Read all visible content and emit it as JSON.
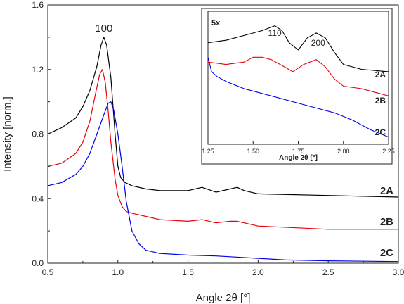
{
  "chart_data": [
    {
      "type": "line",
      "xlabel": "Angle 2θ [°]",
      "ylabel": "Intensity [norm.]",
      "xlim": [
        0.5,
        3.0
      ],
      "ylim": [
        0.0,
        1.6
      ],
      "xticks": [
        "0.5",
        "1.0",
        "1.5",
        "2.0",
        "2.5",
        "3.0"
      ],
      "yticks": [
        "0.0",
        "0.4",
        "0.8",
        "1.2",
        "1.6"
      ],
      "annotations": [
        "100"
      ],
      "grid": false,
      "series": [
        {
          "name": "2A",
          "color": "#000000",
          "x": [
            0.5,
            0.6,
            0.7,
            0.75,
            0.8,
            0.85,
            0.88,
            0.9,
            0.92,
            0.95,
            0.98,
            1.0,
            1.02,
            1.05,
            1.1,
            1.2,
            1.3,
            1.5,
            1.6,
            1.7,
            1.8,
            1.85,
            1.9,
            2.0,
            2.5,
            3.0
          ],
          "y": [
            0.8,
            0.84,
            0.9,
            0.97,
            1.07,
            1.22,
            1.35,
            1.4,
            1.35,
            1.15,
            0.8,
            0.6,
            0.53,
            0.5,
            0.48,
            0.46,
            0.45,
            0.45,
            0.47,
            0.44,
            0.46,
            0.47,
            0.45,
            0.43,
            0.42,
            0.41
          ]
        },
        {
          "name": "2B",
          "color": "#e8000b",
          "x": [
            0.5,
            0.6,
            0.7,
            0.75,
            0.8,
            0.84,
            0.87,
            0.89,
            0.91,
            0.93,
            0.95,
            0.98,
            1.0,
            1.03,
            1.06,
            1.1,
            1.2,
            1.3,
            1.5,
            1.6,
            1.7,
            1.8,
            1.85,
            1.9,
            2.0,
            2.5,
            3.0
          ],
          "y": [
            0.6,
            0.62,
            0.68,
            0.75,
            0.88,
            1.05,
            1.17,
            1.2,
            1.12,
            0.95,
            0.75,
            0.52,
            0.42,
            0.35,
            0.32,
            0.31,
            0.29,
            0.27,
            0.26,
            0.27,
            0.25,
            0.26,
            0.26,
            0.25,
            0.23,
            0.21,
            0.21
          ]
        },
        {
          "name": "2C",
          "color": "#0000ee",
          "x": [
            0.5,
            0.6,
            0.7,
            0.75,
            0.8,
            0.85,
            0.9,
            0.93,
            0.95,
            0.97,
            1.0,
            1.03,
            1.06,
            1.1,
            1.15,
            1.2,
            1.3,
            1.5,
            1.7,
            1.8,
            2.0,
            2.2,
            2.5,
            3.0
          ],
          "y": [
            0.48,
            0.5,
            0.55,
            0.6,
            0.68,
            0.8,
            0.92,
            0.99,
            1.0,
            0.95,
            0.8,
            0.6,
            0.38,
            0.2,
            0.12,
            0.08,
            0.06,
            0.05,
            0.045,
            0.04,
            0.03,
            0.02,
            0.015,
            0.01
          ]
        }
      ]
    },
    {
      "type": "line",
      "xlabel": "Angle 2θ [°]",
      "xlim": [
        1.25,
        2.25
      ],
      "xticks": [
        "1.25",
        "1.50",
        "1.75",
        "2.00",
        "2.25"
      ],
      "yticks": [],
      "annotations": [
        "5x",
        "110",
        "200"
      ],
      "grid": false,
      "series": [
        {
          "name": "2A",
          "color": "#000000",
          "x": [
            1.25,
            1.35,
            1.45,
            1.55,
            1.62,
            1.66,
            1.7,
            1.75,
            1.8,
            1.85,
            1.9,
            1.95,
            2.0,
            2.05,
            2.1,
            2.25
          ],
          "y": [
            0.82,
            0.83,
            0.85,
            0.87,
            0.89,
            0.87,
            0.82,
            0.79,
            0.84,
            0.86,
            0.84,
            0.78,
            0.73,
            0.72,
            0.71,
            0.7
          ]
        },
        {
          "name": "2B",
          "color": "#e8000b",
          "x": [
            1.25,
            1.35,
            1.45,
            1.5,
            1.55,
            1.6,
            1.65,
            1.72,
            1.78,
            1.85,
            1.9,
            1.95,
            2.0,
            2.1,
            2.25
          ],
          "y": [
            0.74,
            0.73,
            0.74,
            0.76,
            0.76,
            0.75,
            0.73,
            0.7,
            0.73,
            0.75,
            0.72,
            0.67,
            0.64,
            0.63,
            0.6
          ]
        },
        {
          "name": "2C",
          "color": "#0000ee",
          "x": [
            1.25,
            1.27,
            1.3,
            1.35,
            1.45,
            1.55,
            1.65,
            1.75,
            1.85,
            1.95,
            2.05,
            2.15,
            2.25
          ],
          "y": [
            0.76,
            0.7,
            0.68,
            0.66,
            0.63,
            0.61,
            0.59,
            0.57,
            0.55,
            0.53,
            0.5,
            0.46,
            0.43
          ]
        }
      ]
    }
  ]
}
